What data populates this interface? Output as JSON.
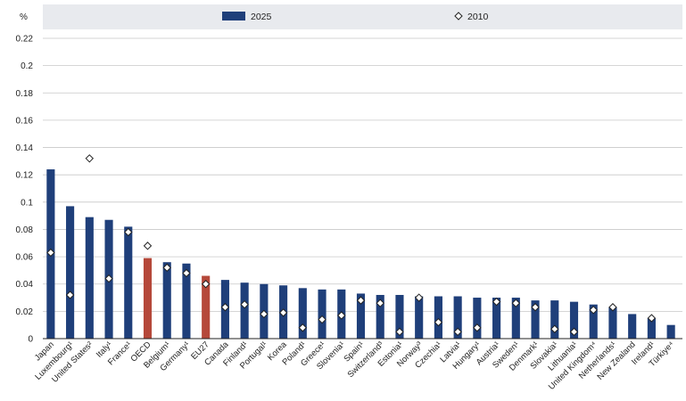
{
  "chart_data": {
    "type": "bar",
    "ylabel": "%",
    "ylim": [
      0,
      0.22
    ],
    "yticks": [
      "0",
      "0.02",
      "0.04",
      "0.06",
      "0.08",
      "0.1",
      "0.12",
      "0.14",
      "0.16",
      "0.18",
      "0.2",
      "0.22"
    ],
    "ytick_values": [
      0,
      0.02,
      0.04,
      0.06,
      0.08,
      0.1,
      0.12,
      0.14,
      0.16,
      0.18,
      0.2,
      0.22
    ],
    "grid": true,
    "legend_position": "top",
    "colors": {
      "default": "#1f3f7a",
      "highlight": "#b5483a",
      "marker_fill": "#ffffff",
      "marker_stroke": "#222222",
      "legend_bg": "#e8eaee"
    },
    "categories": [
      "Japan",
      "Luxembourg¹",
      "United States²",
      "Italy¹",
      "France¹",
      "OECD",
      "Belgium¹",
      "Germany¹",
      "EU27",
      "Canada",
      "Finland¹",
      "Portugal¹",
      "Korea",
      "Poland¹",
      "Greece¹",
      "Slovenia¹",
      "Spain¹",
      "Switzerland³",
      "Estonia¹",
      "Norway³",
      "Czechia¹",
      "Latvia¹",
      "Hungary¹",
      "Austria¹",
      "Sweden¹",
      "Denmark¹",
      "Slovakia¹",
      "Lithuania¹",
      "United Kingdom⁴",
      "Netherlands¹",
      "New Zealand",
      "Ireland¹",
      "Türkiye⁴"
    ],
    "highlight": [
      "OECD",
      "EU27"
    ],
    "series": [
      {
        "name": "2025",
        "kind": "bar",
        "values": [
          0.124,
          0.097,
          0.089,
          0.087,
          0.082,
          0.059,
          0.056,
          0.055,
          0.046,
          0.043,
          0.041,
          0.04,
          0.039,
          0.037,
          0.036,
          0.036,
          0.033,
          0.032,
          0.032,
          0.031,
          0.031,
          0.031,
          0.03,
          0.03,
          0.03,
          0.028,
          0.028,
          0.027,
          0.025,
          0.023,
          0.018,
          0.015,
          0.01
        ]
      },
      {
        "name": "2010",
        "kind": "marker",
        "values": [
          0.063,
          0.032,
          0.132,
          0.044,
          0.078,
          0.068,
          0.052,
          0.048,
          0.04,
          0.023,
          0.025,
          0.018,
          0.019,
          0.008,
          0.014,
          0.017,
          0.028,
          0.026,
          0.005,
          0.03,
          0.012,
          0.005,
          0.008,
          0.027,
          0.026,
          0.023,
          0.007,
          0.005,
          0.021,
          0.023,
          null,
          0.015,
          null
        ]
      }
    ]
  }
}
